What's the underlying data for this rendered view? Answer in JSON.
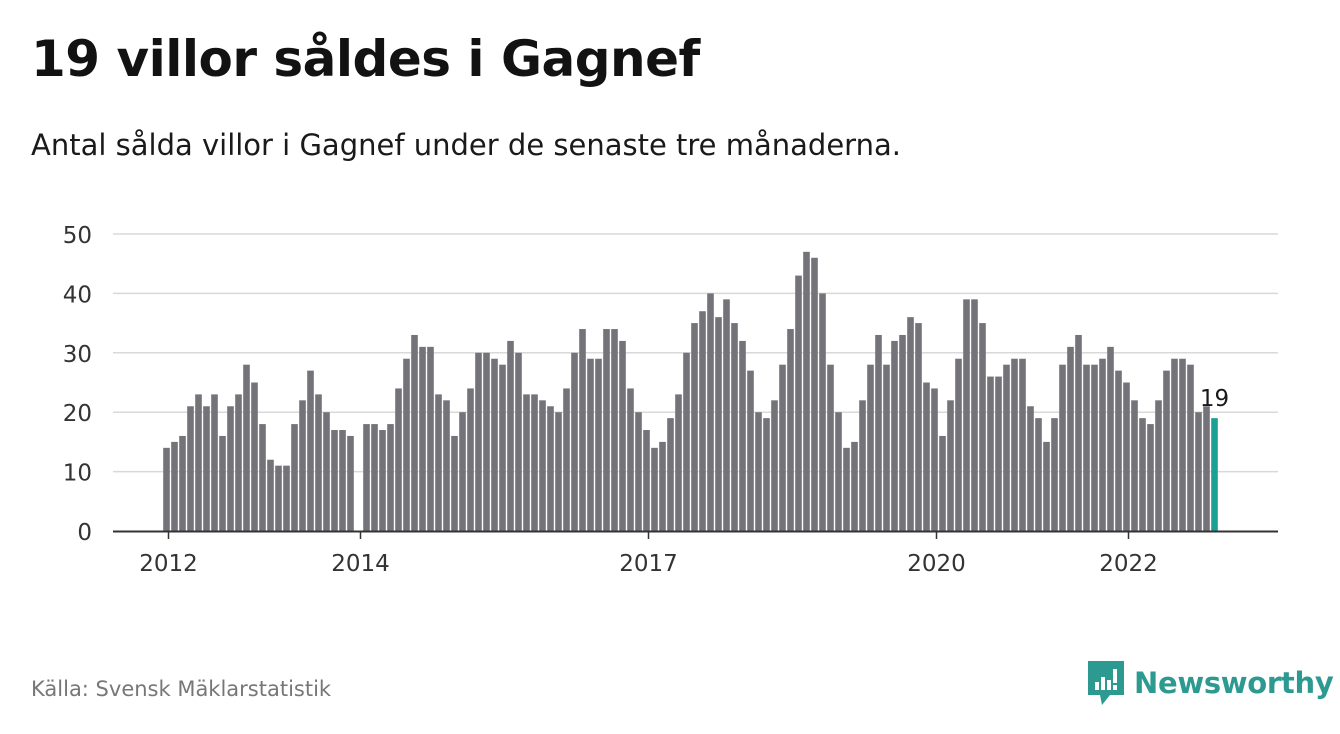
{
  "title": "19 villor såldes i Gagnef",
  "subtitle": "Antal sålda villor i Gagnef under de senaste tre månaderna.",
  "source": "Källa: Svensk Mäklarstatistik",
  "brand": {
    "name": "Newsworthy",
    "icon": "newsworthy-logo-icon"
  },
  "colors": {
    "bar": "#74737a",
    "highlight": "#1aa095",
    "grid": "#d9d9d9",
    "axis": "#333333",
    "brand": "#2d9a91"
  },
  "chart_data": {
    "type": "bar",
    "ylim": [
      0,
      50
    ],
    "yticks": [
      "0",
      "10",
      "20",
      "30",
      "40",
      "50"
    ],
    "xtick_labels": [
      "2012",
      "2014",
      "2017",
      "2020",
      "2022"
    ],
    "grid": true,
    "highlight_label": "19",
    "values": [
      14,
      15,
      16,
      21,
      23,
      21,
      23,
      16,
      21,
      23,
      28,
      25,
      18,
      12,
      11,
      11,
      18,
      22,
      27,
      23,
      20,
      17,
      17,
      16,
      0,
      18,
      18,
      17,
      18,
      24,
      29,
      33,
      31,
      31,
      23,
      22,
      16,
      20,
      24,
      30,
      30,
      29,
      28,
      32,
      30,
      23,
      23,
      22,
      21,
      20,
      24,
      30,
      34,
      29,
      29,
      34,
      34,
      32,
      24,
      20,
      17,
      14,
      15,
      19,
      23,
      30,
      35,
      37,
      40,
      36,
      39,
      35,
      32,
      27,
      20,
      19,
      22,
      28,
      34,
      43,
      47,
      46,
      40,
      28,
      20,
      14,
      15,
      22,
      28,
      33,
      28,
      32,
      33,
      36,
      35,
      25,
      24,
      16,
      22,
      29,
      39,
      39,
      35,
      26,
      26,
      28,
      29,
      29,
      21,
      19,
      15,
      19,
      28,
      31,
      33,
      28,
      28,
      29,
      31,
      27,
      25,
      22,
      19,
      18,
      22,
      27,
      29,
      29,
      28,
      20,
      21,
      19
    ]
  }
}
